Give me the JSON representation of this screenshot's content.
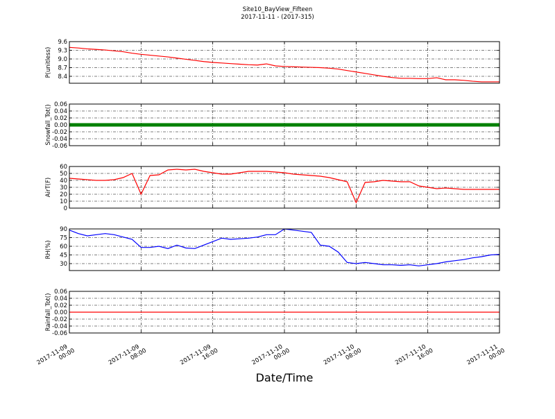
{
  "title": "Site10_BayView_Fifteen",
  "subtitle": "2017-11-11 - (2017-315)",
  "grid": true,
  "x_axis": {
    "label": "Date/Time",
    "xlim": [
      "2017-11-09 00:00",
      "2017-11-11 00:00"
    ],
    "xticks": [
      {
        "value": "2017-11-09 00:00",
        "label": [
          "2017-11-09",
          "00:00"
        ]
      },
      {
        "value": "2017-11-09 08:00",
        "label": [
          "2017-11-09",
          "08:00"
        ]
      },
      {
        "value": "2017-11-09 16:00",
        "label": [
          "2017-11-09",
          "16:00"
        ]
      },
      {
        "value": "2017-11-10 00:00",
        "label": [
          "2017-11-10",
          "00:00"
        ]
      },
      {
        "value": "2017-11-10 08:00",
        "label": [
          "2017-11-10",
          "08:00"
        ]
      },
      {
        "value": "2017-11-10 16:00",
        "label": [
          "2017-11-10",
          "16:00"
        ]
      },
      {
        "value": "2017-11-11 00:00",
        "label": [
          "2017-11-11",
          "00:00"
        ]
      }
    ],
    "x": [
      "2017-11-09 00:00",
      "2017-11-09 01:00",
      "2017-11-09 02:00",
      "2017-11-09 03:00",
      "2017-11-09 04:00",
      "2017-11-09 05:00",
      "2017-11-09 06:00",
      "2017-11-09 07:00",
      "2017-11-09 08:00",
      "2017-11-09 09:00",
      "2017-11-09 10:00",
      "2017-11-09 11:00",
      "2017-11-09 12:00",
      "2017-11-09 13:00",
      "2017-11-09 14:00",
      "2017-11-09 15:00",
      "2017-11-09 16:00",
      "2017-11-09 17:00",
      "2017-11-09 18:00",
      "2017-11-09 19:00",
      "2017-11-09 20:00",
      "2017-11-09 21:00",
      "2017-11-09 22:00",
      "2017-11-09 23:00",
      "2017-11-10 00:00",
      "2017-11-10 01:00",
      "2017-11-10 02:00",
      "2017-11-10 03:00",
      "2017-11-10 04:00",
      "2017-11-10 05:00",
      "2017-11-10 06:00",
      "2017-11-10 07:00",
      "2017-11-10 08:00",
      "2017-11-10 09:00",
      "2017-11-10 10:00",
      "2017-11-10 11:00",
      "2017-11-10 12:00",
      "2017-11-10 13:00",
      "2017-11-10 14:00",
      "2017-11-10 15:00",
      "2017-11-10 16:00",
      "2017-11-10 17:00",
      "2017-11-10 18:00",
      "2017-11-10 19:00",
      "2017-11-10 20:00",
      "2017-11-10 21:00",
      "2017-11-10 22:00",
      "2017-11-10 23:00",
      "2017-11-11 00:00"
    ]
  },
  "chart_data": [
    {
      "type": "line",
      "ylabel": "P(unitless)",
      "color": "#ff0000",
      "ylim": [
        8.16,
        9.6
      ],
      "yticks": [
        8.4,
        8.7,
        {
          "value": 9,
          "label": "9.0"
        },
        9.3,
        9.6
      ],
      "values": [
        9.4,
        9.38,
        9.35,
        9.33,
        9.31,
        9.28,
        9.25,
        9.2,
        9.16,
        9.13,
        9.1,
        9.07,
        9.03,
        8.99,
        8.95,
        8.91,
        8.88,
        8.86,
        8.84,
        8.82,
        8.8,
        8.79,
        8.83,
        8.76,
        8.74,
        8.73,
        8.72,
        8.71,
        8.7,
        8.68,
        8.65,
        8.6,
        8.55,
        8.5,
        8.45,
        8.4,
        8.36,
        8.33,
        8.33,
        8.32,
        8.32,
        8.35,
        8.28,
        8.28,
        8.26,
        8.23,
        8.21,
        8.21,
        8.21
      ]
    },
    {
      "type": "thick-line",
      "ylabel": "Snowfall_Tot()",
      "color": "#008000",
      "ylim": [
        -0.06,
        0.06
      ],
      "yticks": [
        -0.06,
        -0.04,
        -0.02,
        {
          "value": 0,
          "label": "0.00"
        },
        0.02,
        0.04,
        0.06
      ],
      "values": [
        0,
        0,
        0,
        0,
        0,
        0,
        0,
        0,
        0,
        0,
        0,
        0,
        0,
        0,
        0,
        0,
        0,
        0,
        0,
        0,
        0,
        0,
        0,
        0,
        0,
        0,
        0,
        0,
        0,
        0,
        0,
        0,
        0,
        0,
        0,
        0,
        0,
        0,
        0,
        0,
        0,
        0,
        0,
        0,
        0,
        0,
        0,
        0,
        0
      ]
    },
    {
      "type": "line",
      "ylabel": "AirT(F)",
      "color": "#ff0000",
      "ylim": [
        0,
        60
      ],
      "yticks": [
        0,
        10,
        20,
        30,
        40,
        50,
        60
      ],
      "values": [
        43,
        42,
        41,
        40,
        40,
        41,
        44,
        50,
        20,
        47,
        48,
        55,
        56,
        55,
        56,
        53,
        51,
        49,
        49,
        51,
        53,
        53,
        53,
        52,
        51,
        49,
        48,
        47,
        46,
        44,
        41,
        38,
        8,
        37,
        38,
        40,
        39,
        38,
        38,
        32,
        30,
        28,
        29,
        28,
        27,
        27,
        27,
        27,
        27
      ]
    },
    {
      "type": "line",
      "ylabel": "RH(%)",
      "color": "#0000ff",
      "ylim": [
        18,
        90
      ],
      "yticks": [
        30,
        45,
        60,
        75,
        90
      ],
      "values": [
        88,
        82,
        78,
        80,
        82,
        80,
        76,
        72,
        58,
        58,
        60,
        56,
        62,
        57,
        56,
        62,
        68,
        74,
        72,
        73,
        74,
        76,
        80,
        80,
        90,
        88,
        86,
        84,
        62,
        60,
        50,
        32,
        30,
        32,
        30,
        28,
        28,
        27,
        28,
        26,
        28,
        30,
        33,
        35,
        37,
        40,
        42,
        45,
        46
      ]
    },
    {
      "type": "line",
      "ylabel": "Rainfall_Tot()",
      "color": "#ff0000",
      "ylim": [
        -0.06,
        0.06
      ],
      "yticks": [
        -0.06,
        -0.04,
        -0.02,
        {
          "value": 0,
          "label": "0.00"
        },
        0.02,
        0.04,
        0.06
      ],
      "values": [
        0,
        0,
        0,
        0,
        0,
        0,
        0,
        0,
        0,
        0,
        0,
        0,
        0,
        0,
        0,
        0,
        0,
        0,
        0,
        0,
        0,
        0,
        0,
        0,
        0,
        0,
        0,
        0,
        0,
        0,
        0,
        0,
        0,
        0,
        0,
        0,
        0,
        0,
        0,
        0,
        0,
        0,
        0,
        0,
        0,
        0,
        0,
        0,
        0
      ]
    }
  ]
}
